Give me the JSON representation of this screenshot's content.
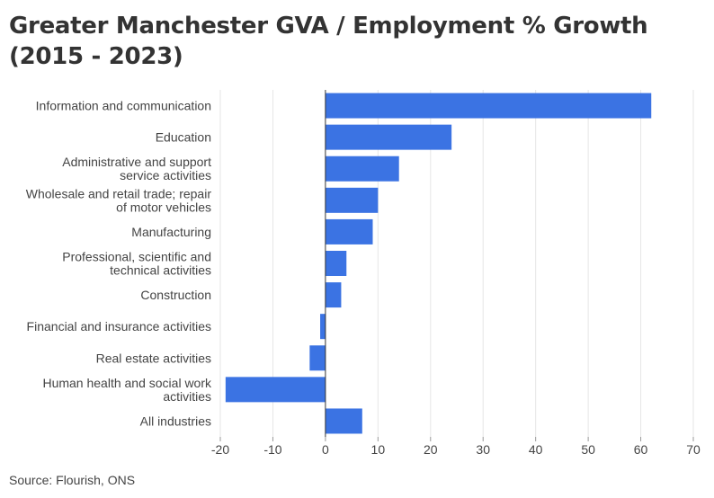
{
  "title": "Greater Manchester GVA / Employment % Growth (2015 - 2023)",
  "source": "Source: Flourish, ONS",
  "colors": {
    "bar": "#3b73e3",
    "grid": "#e6e6e6",
    "axis": "#333333"
  },
  "chart_data": {
    "type": "bar",
    "orientation": "horizontal",
    "title": "Greater Manchester GVA / Employment % Growth (2015 - 2023)",
    "xlabel": "",
    "ylabel": "",
    "xlim": [
      -20,
      70
    ],
    "xticks": [
      -20,
      -10,
      0,
      10,
      20,
      30,
      40,
      50,
      60,
      70
    ],
    "grid": true,
    "categories": [
      [
        "Information and communication"
      ],
      [
        "Education"
      ],
      [
        "Administrative and support",
        "service activities"
      ],
      [
        "Wholesale and retail trade; repair",
        "of motor vehicles"
      ],
      [
        "Manufacturing"
      ],
      [
        "Professional, scientific and",
        "technical activities"
      ],
      [
        "Construction"
      ],
      [
        "Financial and insurance activities"
      ],
      [
        "Real estate activities"
      ],
      [
        "Human health and social work",
        "activities"
      ],
      [
        "All industries"
      ]
    ],
    "values": [
      62,
      24,
      14,
      10,
      9,
      4,
      3,
      -1,
      -3,
      -19,
      7
    ]
  }
}
